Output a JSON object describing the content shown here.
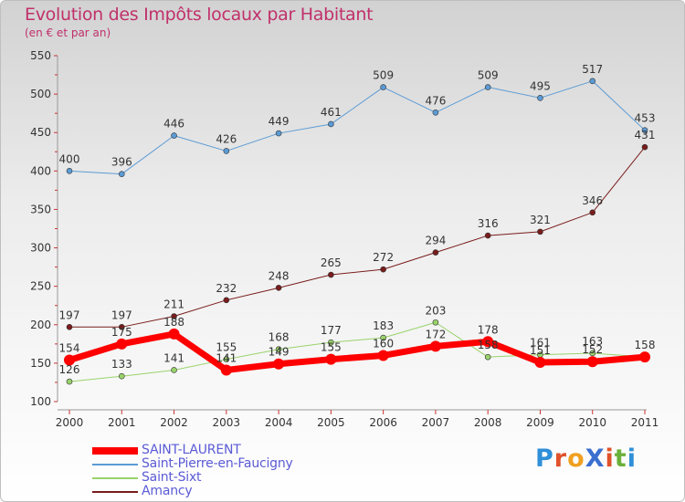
{
  "header": {
    "title": "Evolution des Impôts locaux par Habitant",
    "subtitle": "(en € et par an)"
  },
  "logo": {
    "text": "ProXiti",
    "letters": [
      "P",
      "r",
      "o",
      "X",
      "i",
      "t",
      "i"
    ],
    "colors": [
      "#2f8fd8",
      "#e0522a",
      "#f0a020",
      "#3a6fd0",
      "#e0522a",
      "#6ab03a",
      "#2f8fd8"
    ]
  },
  "chart_data": {
    "type": "line",
    "x": [
      "2000",
      "2001",
      "2002",
      "2003",
      "2004",
      "2005",
      "2006",
      "2007",
      "2008",
      "2009",
      "2010",
      "2011"
    ],
    "ylim": [
      100,
      550
    ],
    "yticks": [
      "100",
      "150",
      "200",
      "250",
      "300",
      "350",
      "400",
      "450",
      "500",
      "550"
    ],
    "grid": false,
    "legend_position": "bottom-left",
    "series": [
      {
        "name": "Saint-Pierre-en-Faucigny",
        "color": "#5b9bd5",
        "width": 1,
        "values": [
          400,
          396,
          446,
          426,
          449,
          461,
          509,
          476,
          509,
          495,
          517,
          453
        ],
        "labels": [
          "400",
          "396",
          "446",
          "426",
          "449",
          "461",
          "509",
          "476",
          "509",
          "495",
          "517",
          "453"
        ]
      },
      {
        "name": "Amancy",
        "color": "#7a1c1c",
        "width": 1,
        "values": [
          197,
          197,
          211,
          232,
          248,
          265,
          272,
          294,
          316,
          321,
          346,
          431
        ],
        "labels": [
          "197",
          "197",
          "211",
          "232",
          "248",
          "265",
          "272",
          "294",
          "316",
          "321",
          "346",
          "431"
        ]
      },
      {
        "name": "Saint-Sixt",
        "color": "#99d36b",
        "width": 1,
        "values": [
          126,
          133,
          141,
          155,
          168,
          177,
          183,
          203,
          158,
          161,
          163,
          158
        ],
        "labels": [
          "126",
          "133",
          "141",
          "155",
          "168",
          "177",
          "183",
          "203",
          "158",
          "161",
          "163",
          ""
        ]
      },
      {
        "name": "SAINT-LAURENT",
        "color": "#ff0000",
        "width": 7,
        "values": [
          154,
          175,
          188,
          141,
          149,
          155,
          160,
          172,
          178,
          151,
          152,
          158
        ],
        "labels": [
          "154",
          "175",
          "188",
          "141",
          "149",
          "155",
          "160",
          "172",
          "178",
          "151",
          "152",
          "158"
        ]
      }
    ],
    "legend": [
      "SAINT-LAURENT",
      "Saint-Pierre-en-Faucigny",
      "Saint-Sixt",
      "Amancy"
    ]
  }
}
